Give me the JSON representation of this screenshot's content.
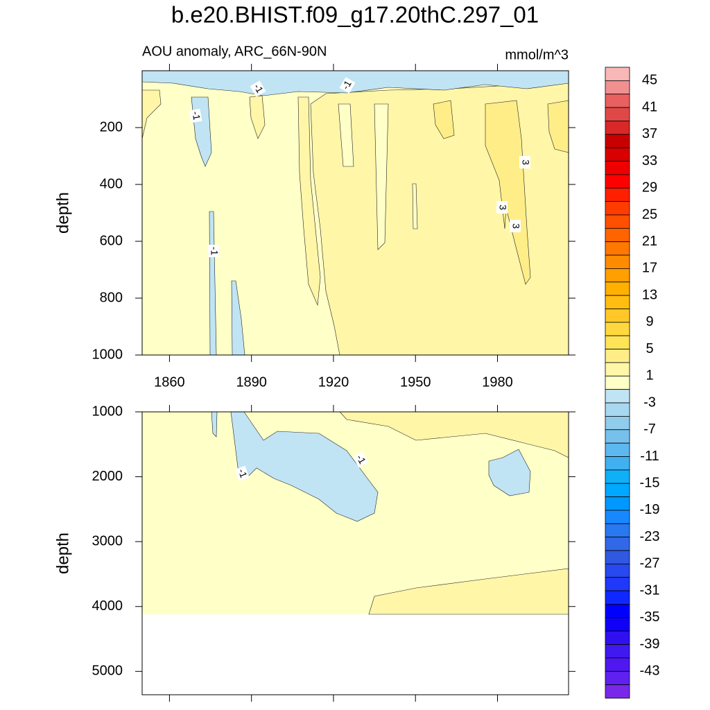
{
  "title": "b.e20.BHIST.f09_g17.20thC.297_01",
  "subtitle_left": "AOU anomaly, ARC_66N-90N",
  "units": "mmol/m^3",
  "chart_data": [
    {
      "type": "contour",
      "ylabel": "depth",
      "xlim": [
        1850,
        2006
      ],
      "xticks": [
        1860,
        1890,
        1920,
        1950,
        1980
      ],
      "xtick_labels": true,
      "ylim": [
        1000,
        0
      ],
      "yticks": [
        200,
        400,
        600,
        800,
        1000
      ],
      "contour_labels": [
        -1,
        -1,
        -1,
        -1,
        3,
        3,
        3
      ]
    },
    {
      "type": "contour",
      "ylabel": "depth",
      "xlim": [
        1850,
        2006
      ],
      "xticks": [
        1860,
        1890,
        1920,
        1950,
        1980
      ],
      "xtick_labels": false,
      "ylim": [
        5360,
        1000
      ],
      "yticks": [
        1000,
        2000,
        3000,
        4000,
        5000
      ],
      "contour_labels": [
        -1,
        -1
      ]
    }
  ],
  "colorbar": {
    "lim": [
      -47,
      47
    ],
    "ticks": [
      45,
      41,
      37,
      33,
      29,
      25,
      21,
      17,
      13,
      9,
      5,
      1,
      -3,
      -7,
      -11,
      -15,
      -19,
      -23,
      -27,
      -31,
      -35,
      -39,
      -43
    ],
    "colors": [
      "#f8b8b8",
      "#f09090",
      "#e86060",
      "#e04848",
      "#d82828",
      "#c80000",
      "#d80000",
      "#ee0000",
      "#ff0000",
      "#ff2000",
      "#ff3c00",
      "#ff5000",
      "#ff6400",
      "#ff7800",
      "#ff8c00",
      "#ffa000",
      "#ffb000",
      "#ffbe10",
      "#ffc828",
      "#ffd840",
      "#ffe458",
      "#ffee88",
      "#fff6a8",
      "#ffffc8",
      "#c0e4f4",
      "#a8d8f0",
      "#90ccec",
      "#78c0ec",
      "#5cb8f0",
      "#40b0f0",
      "#10b0f8",
      "#00a8ff",
      "#0098ff",
      "#1888ff",
      "#2878f0",
      "#3068e8",
      "#3058e0",
      "#2848f0",
      "#2038f8",
      "#1028ff",
      "#0000ff",
      "#1000f8",
      "#3010f0",
      "#4018f0",
      "#5018f0",
      "#6020f0",
      "#7828e8"
    ]
  }
}
